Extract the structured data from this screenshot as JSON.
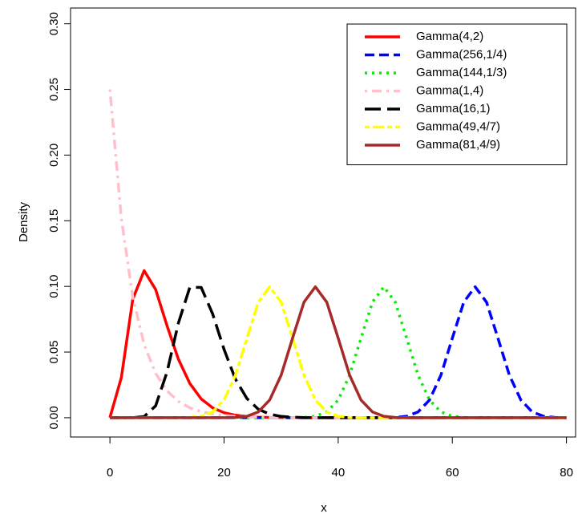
{
  "chart_data": {
    "type": "line",
    "xlabel": "x",
    "ylabel": "Density",
    "x": [
      0,
      2,
      4,
      6,
      8,
      10,
      12,
      14,
      16,
      18,
      20,
      22,
      24,
      26,
      28,
      30,
      32,
      34,
      36,
      38,
      40,
      42,
      44,
      46,
      48,
      50,
      52,
      54,
      56,
      58,
      60,
      62,
      64,
      66,
      68,
      70,
      72,
      74,
      76,
      78,
      80
    ],
    "xlim": [
      -6.9,
      81.6
    ],
    "xticks": [
      0,
      20,
      40,
      60,
      80
    ],
    "ylim": [
      -0.0147,
      0.312
    ],
    "yticks": [
      {
        "value": 0,
        "label": "0.00"
      },
      0.05,
      {
        "value": 0.1,
        "label": "0.10"
      },
      0.15,
      {
        "value": 0.2,
        "label": "0.20"
      },
      0.25,
      {
        "value": 0.3,
        "label": "0.30"
      }
    ],
    "legend": "top-right",
    "series": [
      {
        "name": "Gamma(4,2)",
        "color": "#ff0000",
        "dash": "solid",
        "values": [
          0,
          0.0307,
          0.0902,
          0.112,
          0.0977,
          0.0702,
          0.0446,
          0.0261,
          0.0143,
          0.0075,
          0.0038,
          0.0019,
          0.0009,
          0.0004,
          0.0002,
          0.0001,
          0,
          0,
          0,
          0,
          0,
          0,
          0,
          0,
          0,
          0,
          0,
          0,
          0,
          0,
          0,
          0,
          0,
          0,
          0,
          0,
          0,
          0,
          0,
          0,
          0
        ]
      },
      {
        "name": "Gamma(256,1/4)",
        "color": "#0000ff",
        "dash": "dashed",
        "values": [
          0,
          0,
          0,
          0,
          0,
          0,
          0,
          0,
          0,
          0,
          0,
          0,
          0,
          0,
          0,
          0,
          0,
          0,
          0,
          0,
          0,
          0,
          0,
          0,
          0,
          0.0002,
          0.0011,
          0.0044,
          0.0135,
          0.0324,
          0.0605,
          0.088,
          0.0997,
          0.088,
          0.0605,
          0.0324,
          0.0135,
          0.0044,
          0.0011,
          0.0002,
          0
        ]
      },
      {
        "name": "Gamma(144,1/3)",
        "color": "#00ee00",
        "dash": "dotted",
        "values": [
          0,
          0,
          0,
          0,
          0,
          0,
          0,
          0,
          0,
          0,
          0,
          0,
          0,
          0,
          0,
          0,
          0,
          0.0002,
          0.0011,
          0.0044,
          0.0135,
          0.0324,
          0.0605,
          0.088,
          0.0997,
          0.088,
          0.0605,
          0.0324,
          0.0135,
          0.0044,
          0.0011,
          0.0002,
          0,
          0,
          0,
          0,
          0,
          0,
          0,
          0,
          0
        ]
      },
      {
        "name": "Gamma(1,4)",
        "color": "#ffc0cb",
        "dash": "dashdot",
        "values": [
          0.25,
          0.1516,
          0.092,
          0.0558,
          0.0338,
          0.0205,
          0.0124,
          0.0075,
          0.0046,
          0.0028,
          0.0017,
          0.001,
          0.0006,
          0.0004,
          0.0002,
          0.0001,
          0,
          0,
          0,
          0,
          0,
          0,
          0,
          0,
          0,
          0,
          0,
          0,
          0,
          0,
          0,
          0,
          0,
          0,
          0,
          0,
          0,
          0,
          0,
          0,
          0
        ]
      },
      {
        "name": "Gamma(16,1)",
        "color": "#000000",
        "dash": "longdash",
        "values": [
          0,
          0,
          0,
          0.0009,
          0.009,
          0.0347,
          0.072,
          0.0993,
          0.0992,
          0.079,
          0.052,
          0.0293,
          0.0146,
          0.0065,
          0.0027,
          0.001,
          0.0004,
          0.0001,
          0,
          0,
          0,
          0,
          0,
          0,
          0,
          0,
          0,
          0,
          0,
          0,
          0,
          0,
          0,
          0,
          0,
          0,
          0,
          0,
          0,
          0,
          0
        ]
      },
      {
        "name": "Gamma(49,4/7)",
        "color": "#ffff00",
        "dash": "twodash",
        "values": [
          0,
          0,
          0,
          0,
          0,
          0,
          0,
          0.0002,
          0.0011,
          0.0044,
          0.0135,
          0.0324,
          0.0605,
          0.088,
          0.0997,
          0.088,
          0.0605,
          0.0324,
          0.0135,
          0.0044,
          0.0011,
          0.0002,
          0,
          0,
          0,
          0,
          0,
          0,
          0,
          0,
          0,
          0,
          0,
          0,
          0,
          0,
          0,
          0,
          0,
          0,
          0
        ]
      },
      {
        "name": "Gamma(81,4/9)",
        "color": "#a52a2a",
        "dash": "solid",
        "values": [
          0,
          0,
          0,
          0,
          0,
          0,
          0,
          0,
          0,
          0,
          0,
          0.0002,
          0.0011,
          0.0044,
          0.0135,
          0.0324,
          0.0605,
          0.088,
          0.0997,
          0.088,
          0.0605,
          0.0324,
          0.0135,
          0.0044,
          0.0011,
          0.0002,
          0,
          0,
          0,
          0,
          0,
          0,
          0,
          0,
          0,
          0,
          0,
          0,
          0,
          0,
          0
        ]
      }
    ]
  }
}
